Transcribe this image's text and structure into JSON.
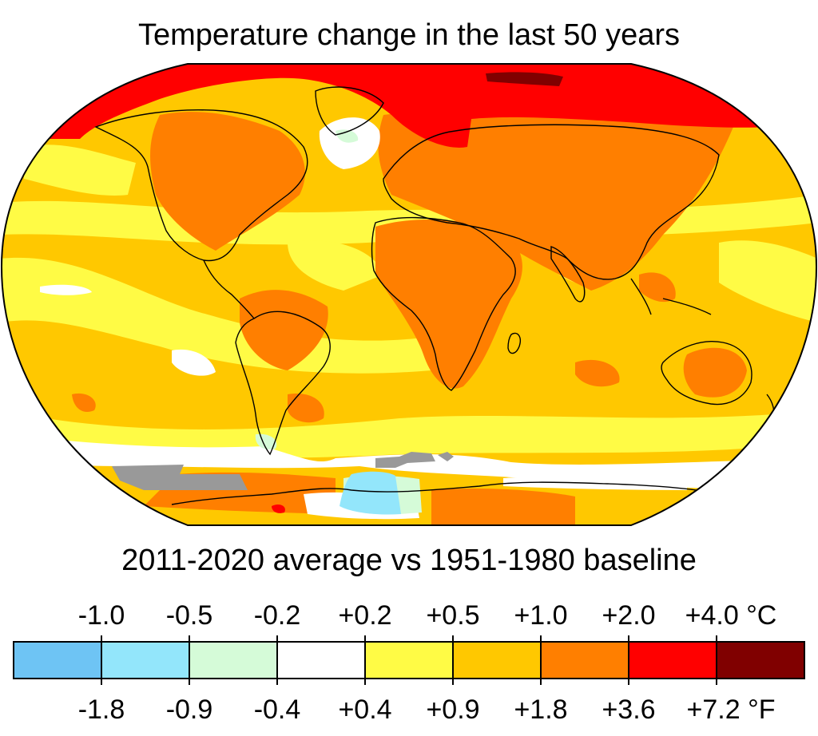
{
  "title": "Temperature change in the last 50 years",
  "subtitle": "2011-2020 average vs 1951-1980 baseline",
  "legend": {
    "celsius_labels": [
      "-1.0",
      "-0.5",
      "-0.2",
      "+0.2",
      "+0.5",
      "+1.0",
      "+2.0",
      "+4.0 °C"
    ],
    "fahrenheit_labels": [
      "-1.8",
      "-0.9",
      "-0.4",
      "+0.4",
      "+0.9",
      "+1.8",
      "+3.6",
      "+7.2 °F"
    ],
    "bins": [
      {
        "color": "#6ec4f4"
      },
      {
        "color": "#93e6fb"
      },
      {
        "color": "#d5fbd8"
      },
      {
        "color": "#ffffff"
      },
      {
        "color": "#fffb45"
      },
      {
        "color": "#ffc800"
      },
      {
        "color": "#ff7f00"
      },
      {
        "color": "#ff0000"
      },
      {
        "color": "#800000"
      }
    ]
  },
  "map_colors": {
    "base": "#ffc800",
    "light_warm": "#fffb45",
    "warm": "#ff7f00",
    "hot": "#ff0000",
    "extreme": "#800000",
    "neutral": "#ffffff",
    "slight_cool": "#d5fbd8",
    "cool": "#93e6fb",
    "no_data": "#999999"
  }
}
